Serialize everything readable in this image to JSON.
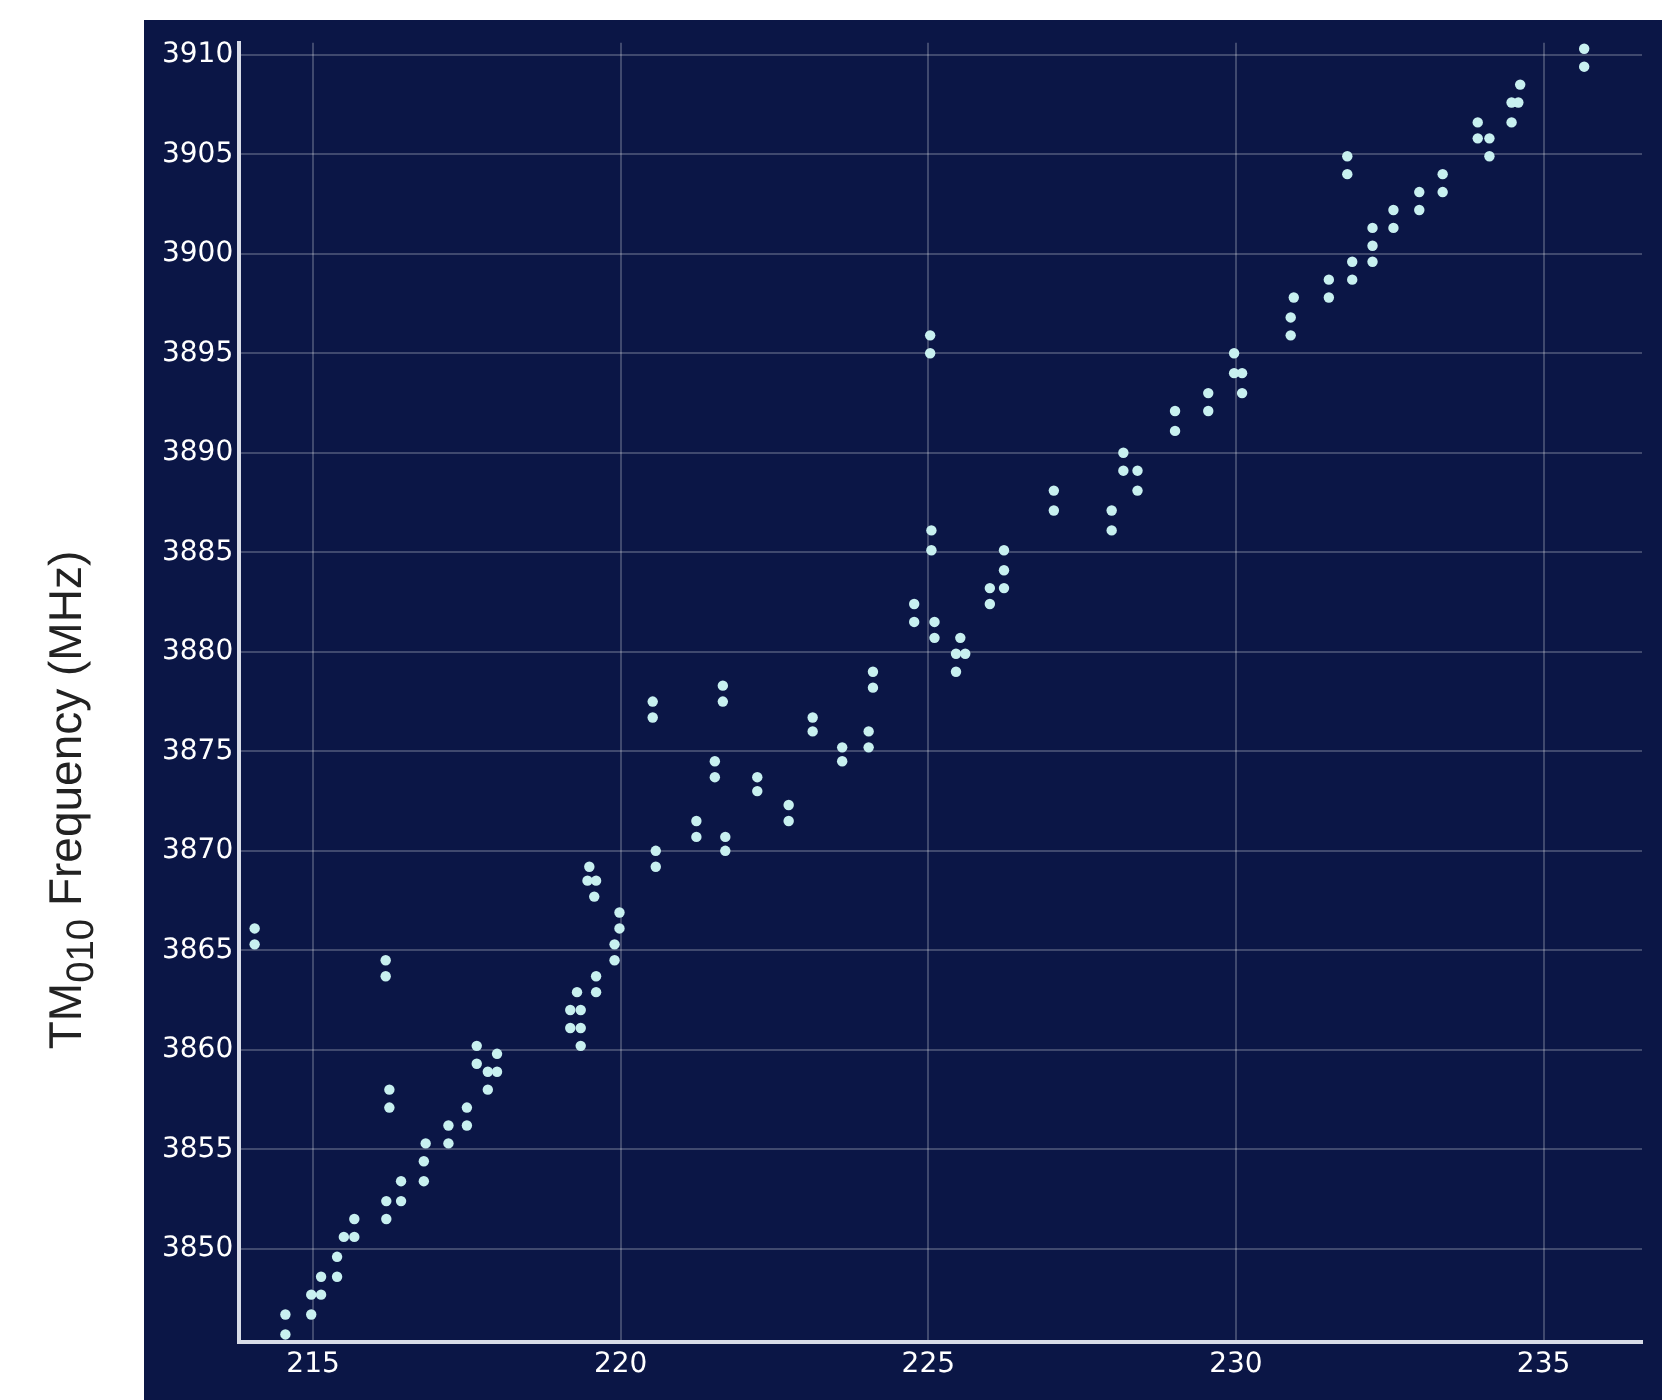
{
  "chart_data": {
    "type": "scatter",
    "ylabel": "TM$_{010}$ Frequency (MHz)",
    "xlim": [
      213.8,
      236.6
    ],
    "ylim": [
      3845.3,
      3910.6
    ],
    "xticks": [
      215,
      220,
      225,
      230,
      235
    ],
    "yticks": [
      3850,
      3855,
      3860,
      3865,
      3870,
      3875,
      3880,
      3885,
      3890,
      3895,
      3900,
      3905,
      3910
    ],
    "grid": true,
    "marker": "circle",
    "series": [
      {
        "color": "#c8f0f0",
        "x": [
          214.55,
          214.55,
          214.97,
          214.97,
          215.13,
          215.13,
          215.39,
          215.39,
          215.5,
          215.67,
          215.67,
          214.05,
          214.05,
          216.18,
          216.18,
          216.24,
          216.24,
          216.19,
          216.19,
          216.43,
          216.43,
          216.8,
          216.8,
          216.83,
          217.2,
          217.2,
          217.5,
          217.5,
          217.66,
          217.66,
          217.84,
          217.99,
          217.84,
          217.99,
          219.18,
          219.35,
          219.18,
          219.35,
          219.35,
          219.29,
          219.6,
          219.6,
          219.49,
          219.46,
          219.6,
          219.57,
          219.98,
          219.98,
          219.9,
          219.9,
          220.52,
          220.52,
          220.57,
          220.57,
          221.23,
          221.23,
          221.53,
          221.53,
          221.66,
          221.66,
          221.7,
          221.7,
          222.22,
          222.22,
          222.73,
          222.73,
          223.12,
          223.12,
          223.6,
          223.6,
          224.03,
          224.03,
          224.1,
          224.1,
          224.77,
          224.77,
          225.03,
          225.03,
          225.05,
          225.05,
          225.1,
          225.1,
          225.52,
          225.45,
          225.6,
          225.45,
          226.0,
          226.0,
          226.23,
          226.23,
          226.23,
          227.04,
          227.04,
          227.98,
          227.98,
          228.17,
          228.17,
          228.4,
          228.4,
          229.01,
          229.01,
          229.55,
          229.55,
          229.97,
          229.97,
          230.1,
          230.1,
          230.89,
          230.89,
          230.94,
          231.51,
          231.51,
          231.81,
          231.81,
          231.89,
          231.89,
          232.22,
          232.22,
          232.22,
          232.56,
          232.56,
          232.98,
          232.98,
          233.36,
          233.36,
          233.93,
          233.93,
          234.12,
          234.12,
          234.48,
          234.48,
          234.59,
          234.62,
          235.66,
          235.66
        ],
        "values": [
          3845.7,
          3846.7,
          3846.7,
          3847.7,
          3847.7,
          3848.6,
          3848.6,
          3849.6,
          3850.6,
          3850.6,
          3851.5,
          3866.1,
          3865.3,
          3864.5,
          3863.7,
          3858.0,
          3857.1,
          3852.4,
          3851.5,
          3853.4,
          3852.4,
          3854.4,
          3853.4,
          3855.3,
          3856.2,
          3855.3,
          3857.1,
          3856.2,
          3860.2,
          3859.3,
          3858.9,
          3858.9,
          3858.0,
          3859.8,
          3862.0,
          3862.0,
          3861.1,
          3861.1,
          3860.2,
          3862.9,
          3863.7,
          3862.9,
          3869.2,
          3868.5,
          3868.5,
          3867.7,
          3866.9,
          3866.1,
          3865.3,
          3864.5,
          3877.5,
          3876.7,
          3870.0,
          3869.2,
          3871.5,
          3870.7,
          3874.5,
          3873.7,
          3878.3,
          3877.5,
          3870.7,
          3870.0,
          3873.7,
          3873.0,
          3872.3,
          3871.5,
          3876.7,
          3876.0,
          3875.2,
          3874.5,
          3876.0,
          3875.2,
          3879.0,
          3878.2,
          3882.4,
          3881.5,
          3895.9,
          3895.0,
          3886.1,
          3885.1,
          3881.5,
          3880.7,
          3880.7,
          3879.9,
          3879.9,
          3879.0,
          3883.2,
          3882.4,
          3884.1,
          3883.2,
          3885.1,
          3888.1,
          3887.1,
          3887.1,
          3886.1,
          3890.0,
          3889.1,
          3889.1,
          3888.1,
          3892.1,
          3891.1,
          3893.0,
          3892.1,
          3895.0,
          3894.0,
          3894.0,
          3893.0,
          3895.9,
          3896.8,
          3897.8,
          3897.8,
          3898.7,
          3904.9,
          3904.0,
          3898.7,
          3899.6,
          3899.6,
          3900.4,
          3901.3,
          3901.3,
          3902.2,
          3902.2,
          3903.1,
          3903.1,
          3904.0,
          3906.6,
          3905.8,
          3905.8,
          3904.9,
          3906.6,
          3907.6,
          3907.6,
          3908.5,
          3910.3,
          3909.4
        ]
      }
    ]
  }
}
